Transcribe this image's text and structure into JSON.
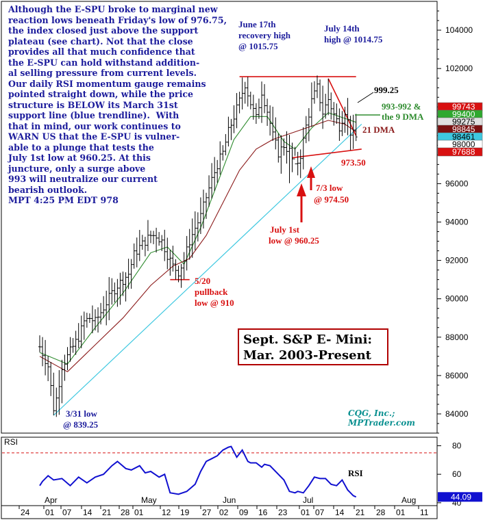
{
  "chart_data": [
    {
      "type": "ohlc",
      "title": "Sept. S&P E- Mini:",
      "subtitle": "Mar. 2003-Present",
      "ylim": [
        83000,
        105500
      ],
      "y_ticks": [
        84000,
        86000,
        88000,
        90000,
        92000,
        94000,
        96000,
        98000,
        100000,
        102000,
        104000
      ],
      "y_tick_labels": [
        "84000",
        "86000",
        "88000",
        "90000",
        "92000",
        "94000",
        "96000",
        "98000",
        "100000",
        "102000",
        "104000"
      ],
      "x_day_labels": [
        "24",
        "01",
        "07",
        "14",
        "21",
        "28",
        "01",
        "12",
        "19",
        "27",
        "02",
        "09",
        "16",
        "23",
        "01",
        "07",
        "14",
        "21",
        "28",
        "01",
        "11"
      ],
      "x_month_labels": [
        "Apr",
        "May",
        "Jun",
        "Jul",
        "Aug"
      ],
      "close_path": [
        [
          0,
          87500
        ],
        [
          3,
          86500
        ],
        [
          5,
          84300
        ],
        [
          6,
          84800
        ],
        [
          8,
          86500
        ],
        [
          10,
          87000
        ],
        [
          12,
          87500
        ],
        [
          14,
          88000
        ],
        [
          16,
          88800
        ],
        [
          18,
          89000
        ],
        [
          20,
          88800
        ],
        [
          22,
          89300
        ],
        [
          24,
          89800
        ],
        [
          26,
          90300
        ],
        [
          28,
          90700
        ],
        [
          30,
          91000
        ],
        [
          32,
          91300
        ],
        [
          34,
          92300
        ],
        [
          36,
          92700
        ],
        [
          38,
          93000
        ],
        [
          40,
          93300
        ],
        [
          42,
          93300
        ],
        [
          44,
          93000
        ],
        [
          46,
          92300
        ],
        [
          48,
          91700
        ],
        [
          50,
          91400
        ],
        [
          52,
          92000
        ],
        [
          54,
          93000
        ],
        [
          56,
          93700
        ],
        [
          58,
          94300
        ],
        [
          60,
          95300
        ],
        [
          62,
          96200
        ],
        [
          64,
          97000
        ],
        [
          66,
          97600
        ],
        [
          68,
          98700
        ],
        [
          70,
          99500
        ],
        [
          72,
          100300
        ],
        [
          74,
          101200
        ],
        [
          76,
          100200
        ],
        [
          78,
          99400
        ],
        [
          80,
          100800
        ],
        [
          82,
          99800
        ],
        [
          84,
          98500
        ],
        [
          86,
          97600
        ],
        [
          88,
          98000
        ],
        [
          90,
          97700
        ],
        [
          92,
          96800
        ],
        [
          94,
          97500
        ],
        [
          96,
          99000
        ],
        [
          98,
          100300
        ],
        [
          100,
          101000
        ],
        [
          102,
          99700
        ],
        [
          104,
          100400
        ],
        [
          106,
          99600
        ],
        [
          108,
          99000
        ],
        [
          110,
          99800
        ],
        [
          112,
          98700
        ],
        [
          114,
          98400
        ]
      ],
      "series": [
        {
          "name": "9 DMA",
          "color": "#2e8b2e",
          "values": [
            [
              0,
              87200
            ],
            [
              10,
              86600
            ],
            [
              20,
              88500
            ],
            [
              30,
              90300
            ],
            [
              40,
              92400
            ],
            [
              46,
              92700
            ],
            [
              52,
              91800
            ],
            [
              58,
              93700
            ],
            [
              64,
              96000
            ],
            [
              70,
              98300
            ],
            [
              76,
              99500
            ],
            [
              82,
              99500
            ],
            [
              88,
              98200
            ],
            [
              92,
              97800
            ],
            [
              98,
              98900
            ],
            [
              104,
              99700
            ],
            [
              110,
              99400
            ],
            [
              114,
              99200
            ]
          ]
        },
        {
          "name": "21 DMA",
          "color": "#8b1a1a",
          "values": [
            [
              0,
              87000
            ],
            [
              10,
              86200
            ],
            [
              20,
              87600
            ],
            [
              30,
              89000
            ],
            [
              40,
              90700
            ],
            [
              48,
              91700
            ],
            [
              54,
              92100
            ],
            [
              60,
              93300
            ],
            [
              66,
              95000
            ],
            [
              72,
              96700
            ],
            [
              78,
              97800
            ],
            [
              84,
              98300
            ],
            [
              90,
              98600
            ],
            [
              96,
              98900
            ],
            [
              104,
              99300
            ],
            [
              110,
              99100
            ],
            [
              114,
              98700
            ]
          ]
        }
      ],
      "trendlines": [
        {
          "name": "March 31st support line",
          "color": "#3ec8e0",
          "from": [
            5,
            83925
          ],
          "to": [
            116,
            99100
          ]
        },
        {
          "name": "recovery high line",
          "color": "#d81010",
          "from": [
            72,
            101575
          ],
          "to": [
            114,
            101575
          ]
        },
        {
          "name": "down trendline",
          "color": "#d81010",
          "from": [
            104,
            101475
          ],
          "to": [
            114,
            98500
          ]
        },
        {
          "name": "lower line",
          "color": "#d81010",
          "from": [
            91,
            97350
          ],
          "to": [
            116,
            97800
          ]
        },
        {
          "name": "5/20 low line",
          "color": "#d81010",
          "from": [
            47,
            91000
          ],
          "to": [
            54,
            91000
          ]
        }
      ],
      "price_tags": [
        {
          "label": "99743",
          "value": 99743,
          "bg": "#d81010",
          "fg": "#ffffff"
        },
        {
          "label": "99400",
          "value": 99400,
          "bg": "#2ea82e",
          "fg": "#ffffff"
        },
        {
          "label": "99275",
          "value": 99275,
          "bg": "#e0e0e0",
          "fg": "#000000"
        },
        {
          "label": "98845",
          "value": 98845,
          "bg": "#7a1010",
          "fg": "#ffffff"
        },
        {
          "label": "98461",
          "value": 98461,
          "bg": "#3ec8e0",
          "fg": "#000000"
        },
        {
          "label": "98000",
          "value": 98000,
          "bg": "#ffffff",
          "fg": "#000000"
        },
        {
          "label": "97688",
          "value": 97688,
          "bg": "#d81010",
          "fg": "#ffffff"
        }
      ]
    },
    {
      "type": "line",
      "name": "RSI",
      "label": "RSI",
      "ylim": [
        38,
        86
      ],
      "y_ticks": [
        40,
        60,
        80
      ],
      "y_tick_labels": [
        "40",
        "60",
        "80"
      ],
      "overbought": 75,
      "last_value_label": "44.09",
      "values": [
        [
          0,
          52
        ],
        [
          1,
          55
        ],
        [
          3,
          59
        ],
        [
          5,
          56
        ],
        [
          8,
          57
        ],
        [
          11,
          52
        ],
        [
          14,
          58
        ],
        [
          17,
          54
        ],
        [
          20,
          58
        ],
        [
          23,
          60
        ],
        [
          26,
          66
        ],
        [
          28,
          69
        ],
        [
          31,
          64
        ],
        [
          33,
          63
        ],
        [
          36,
          66
        ],
        [
          38,
          61
        ],
        [
          40,
          62
        ],
        [
          43,
          58
        ],
        [
          45,
          60
        ],
        [
          47,
          47
        ],
        [
          50,
          46
        ],
        [
          53,
          48
        ],
        [
          56,
          53
        ],
        [
          58,
          62
        ],
        [
          60,
          69
        ],
        [
          62,
          71
        ],
        [
          64,
          73
        ],
        [
          66,
          77
        ],
        [
          68,
          79
        ],
        [
          69,
          79.5
        ],
        [
          71,
          72
        ],
        [
          73,
          77
        ],
        [
          75,
          69
        ],
        [
          76,
          68
        ],
        [
          78,
          68
        ],
        [
          80,
          65
        ],
        [
          81,
          67
        ],
        [
          83,
          66
        ],
        [
          86,
          60
        ],
        [
          88,
          56
        ],
        [
          90,
          48
        ],
        [
          92,
          47
        ],
        [
          93,
          48
        ],
        [
          95,
          47
        ],
        [
          97,
          52
        ],
        [
          99,
          58
        ],
        [
          101,
          57
        ],
        [
          103,
          57
        ],
        [
          105,
          53
        ],
        [
          107,
          52
        ],
        [
          109,
          56
        ],
        [
          111,
          49
        ],
        [
          113,
          45
        ],
        [
          114,
          44.1
        ]
      ]
    }
  ],
  "commentary": {
    "lines": [
      "Although the E-SPU broke to marginal new",
      "reaction lows beneath Friday's low of 976.75,",
      "the index closed just above the support",
      "plateau (see chart). Not that the close",
      "provides all that much confidence that",
      "the E-SPU can hold withstand addition-",
      "al selling pressure from current levels.",
      "Our daily RSI momentum gauge remains",
      "pointed straight down, while the price",
      "structure is BELOW its March 31st",
      "support line (blue trendline).  With",
      "that in mind, our work continues to",
      "WARN US that the E-SPU is vulner-",
      "able to a plunge that tests the",
      "July 1st low at 960.25. At this",
      "juncture, only a surge above",
      "993 will neutralize our current",
      "bearish outlook.",
      "MPT 4:25 PM EDT 978"
    ]
  },
  "annotations": {
    "june17_line1": "June 17th",
    "june17_line2": "recovery high",
    "june17_line3": "@ 1015.75",
    "july14_line1": "July 14th",
    "july14_line2": "high @ 1014.75",
    "level_999": "999.25",
    "dma9_line1": "993-992 &",
    "dma9_line2": "the 9 DMA",
    "dma21": "21 DMA",
    "level_973": "973.50",
    "july3_line1": "7/3 low",
    "july3_line2": "@ 974.50",
    "july1_line1": "July 1st",
    "july1_line2": "low @ 960.25",
    "may20_line1": "5/20",
    "may20_line2": "pullback",
    "may20_line3": "low @ 910",
    "mar31_line1": "3/31 low",
    "mar31_line2": "@ 839.25"
  },
  "credit": {
    "line1": "CQG, Inc.;",
    "line2": "MPTrader.com"
  },
  "colors": {
    "price_bars": "#000000",
    "annotation_blue": "#1c1c9c",
    "annotation_red": "#d81010",
    "annotation_green": "#2e8b2e",
    "annotation_darkred": "#8b1a1a",
    "rsi_line": "#1010d0",
    "credit": "#0a9090"
  }
}
